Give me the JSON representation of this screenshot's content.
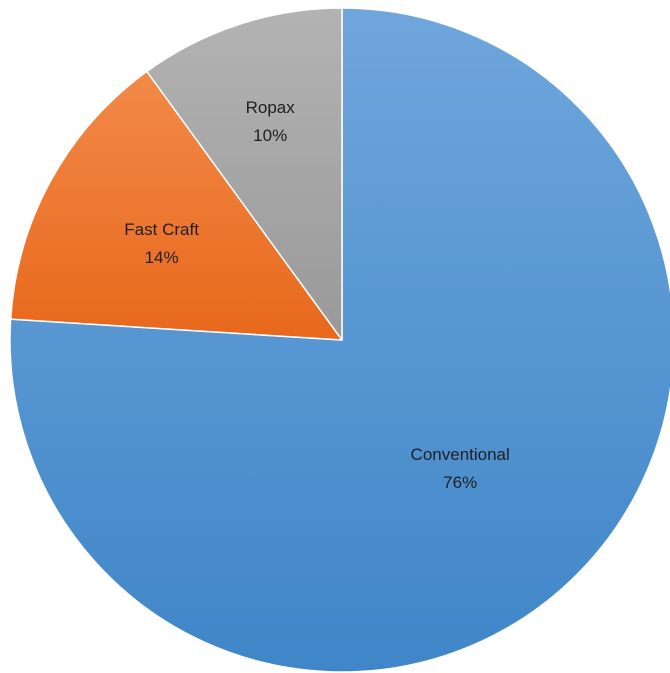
{
  "chart_data": {
    "type": "pie",
    "start_angle_deg": 0,
    "direction": "clockwise",
    "slices": [
      {
        "label": "Conventional",
        "value": 76,
        "value_label": "76%",
        "color_top": "#6fa6dc",
        "color_bottom": "#3f86c8"
      },
      {
        "label": "Fast Craft",
        "value": 14,
        "value_label": "14%",
        "color_top": "#f28a48",
        "color_bottom": "#e8681c"
      },
      {
        "label": "Ropax",
        "value": 10,
        "value_label": "10%",
        "color_top": "#b3b3b3",
        "color_bottom": "#999999"
      }
    ]
  }
}
